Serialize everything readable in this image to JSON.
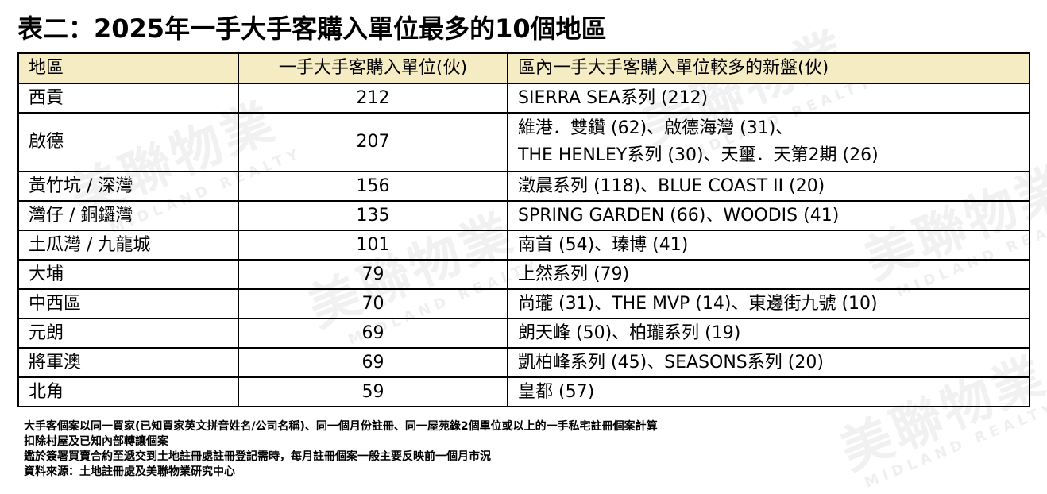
{
  "title": "表二：2025年一手大手客購入單位最多的10個地區",
  "watermark": {
    "brand": "美聯物業",
    "sub": "MIDLAND REALTY"
  },
  "table": {
    "headers": [
      "地區",
      "一手大手客購入單位(伙)",
      "區內一手大手客購入單位較多的新盤(伙)"
    ],
    "rows": [
      {
        "district": "西貢",
        "units": "212",
        "estates": [
          "SIERRA SEA系列 (212)"
        ]
      },
      {
        "district": "啟德",
        "units": "207",
        "estates": [
          "維港．雙鑽 (62)、啟德海灣 (31)、",
          "THE HENLEY系列 (30)、天璽．天第2期 (26)"
        ]
      },
      {
        "district": "黃竹坑 / 深灣",
        "units": "156",
        "estates": [
          "澂晨系列 (118)、BLUE COAST II (20)"
        ]
      },
      {
        "district": "灣仔 / 銅鑼灣",
        "units": "135",
        "estates": [
          "SPRING GARDEN (66)、WOODIS (41)"
        ]
      },
      {
        "district": "土瓜灣 / 九龍城",
        "units": "101",
        "estates": [
          "南首 (54)、瑧博 (41)"
        ]
      },
      {
        "district": "大埔",
        "units": "79",
        "estates": [
          "上然系列 (79)"
        ]
      },
      {
        "district": "中西區",
        "units": "70",
        "estates": [
          "尚瓏 (31)、THE MVP (14)、東邊街九號 (10)"
        ]
      },
      {
        "district": "元朗",
        "units": "69",
        "estates": [
          "朗天峰 (50)、柏瓏系列 (19)"
        ]
      },
      {
        "district": "將軍澳",
        "units": "69",
        "estates": [
          "凱柏峰系列 (45)、SEASONS系列 (20)"
        ]
      },
      {
        "district": "北角",
        "units": "59",
        "estates": [
          "皇都 (57)"
        ]
      }
    ]
  },
  "notes": [
    "大手客個案以同一買家(已知買家英文拼音姓名/公司名稱)、同一個月份註冊、同一屋苑錄2個單位或以上的一手私宅註冊個案計算",
    "扣除村屋及已知內部轉讓個案",
    "鑑於簽署買賣合約至遞交到土地註冊處註冊登記需時，每月註冊個案一般主要反映前一個月市況",
    "資料來源：土地註冊處及美聯物業研究中心"
  ]
}
